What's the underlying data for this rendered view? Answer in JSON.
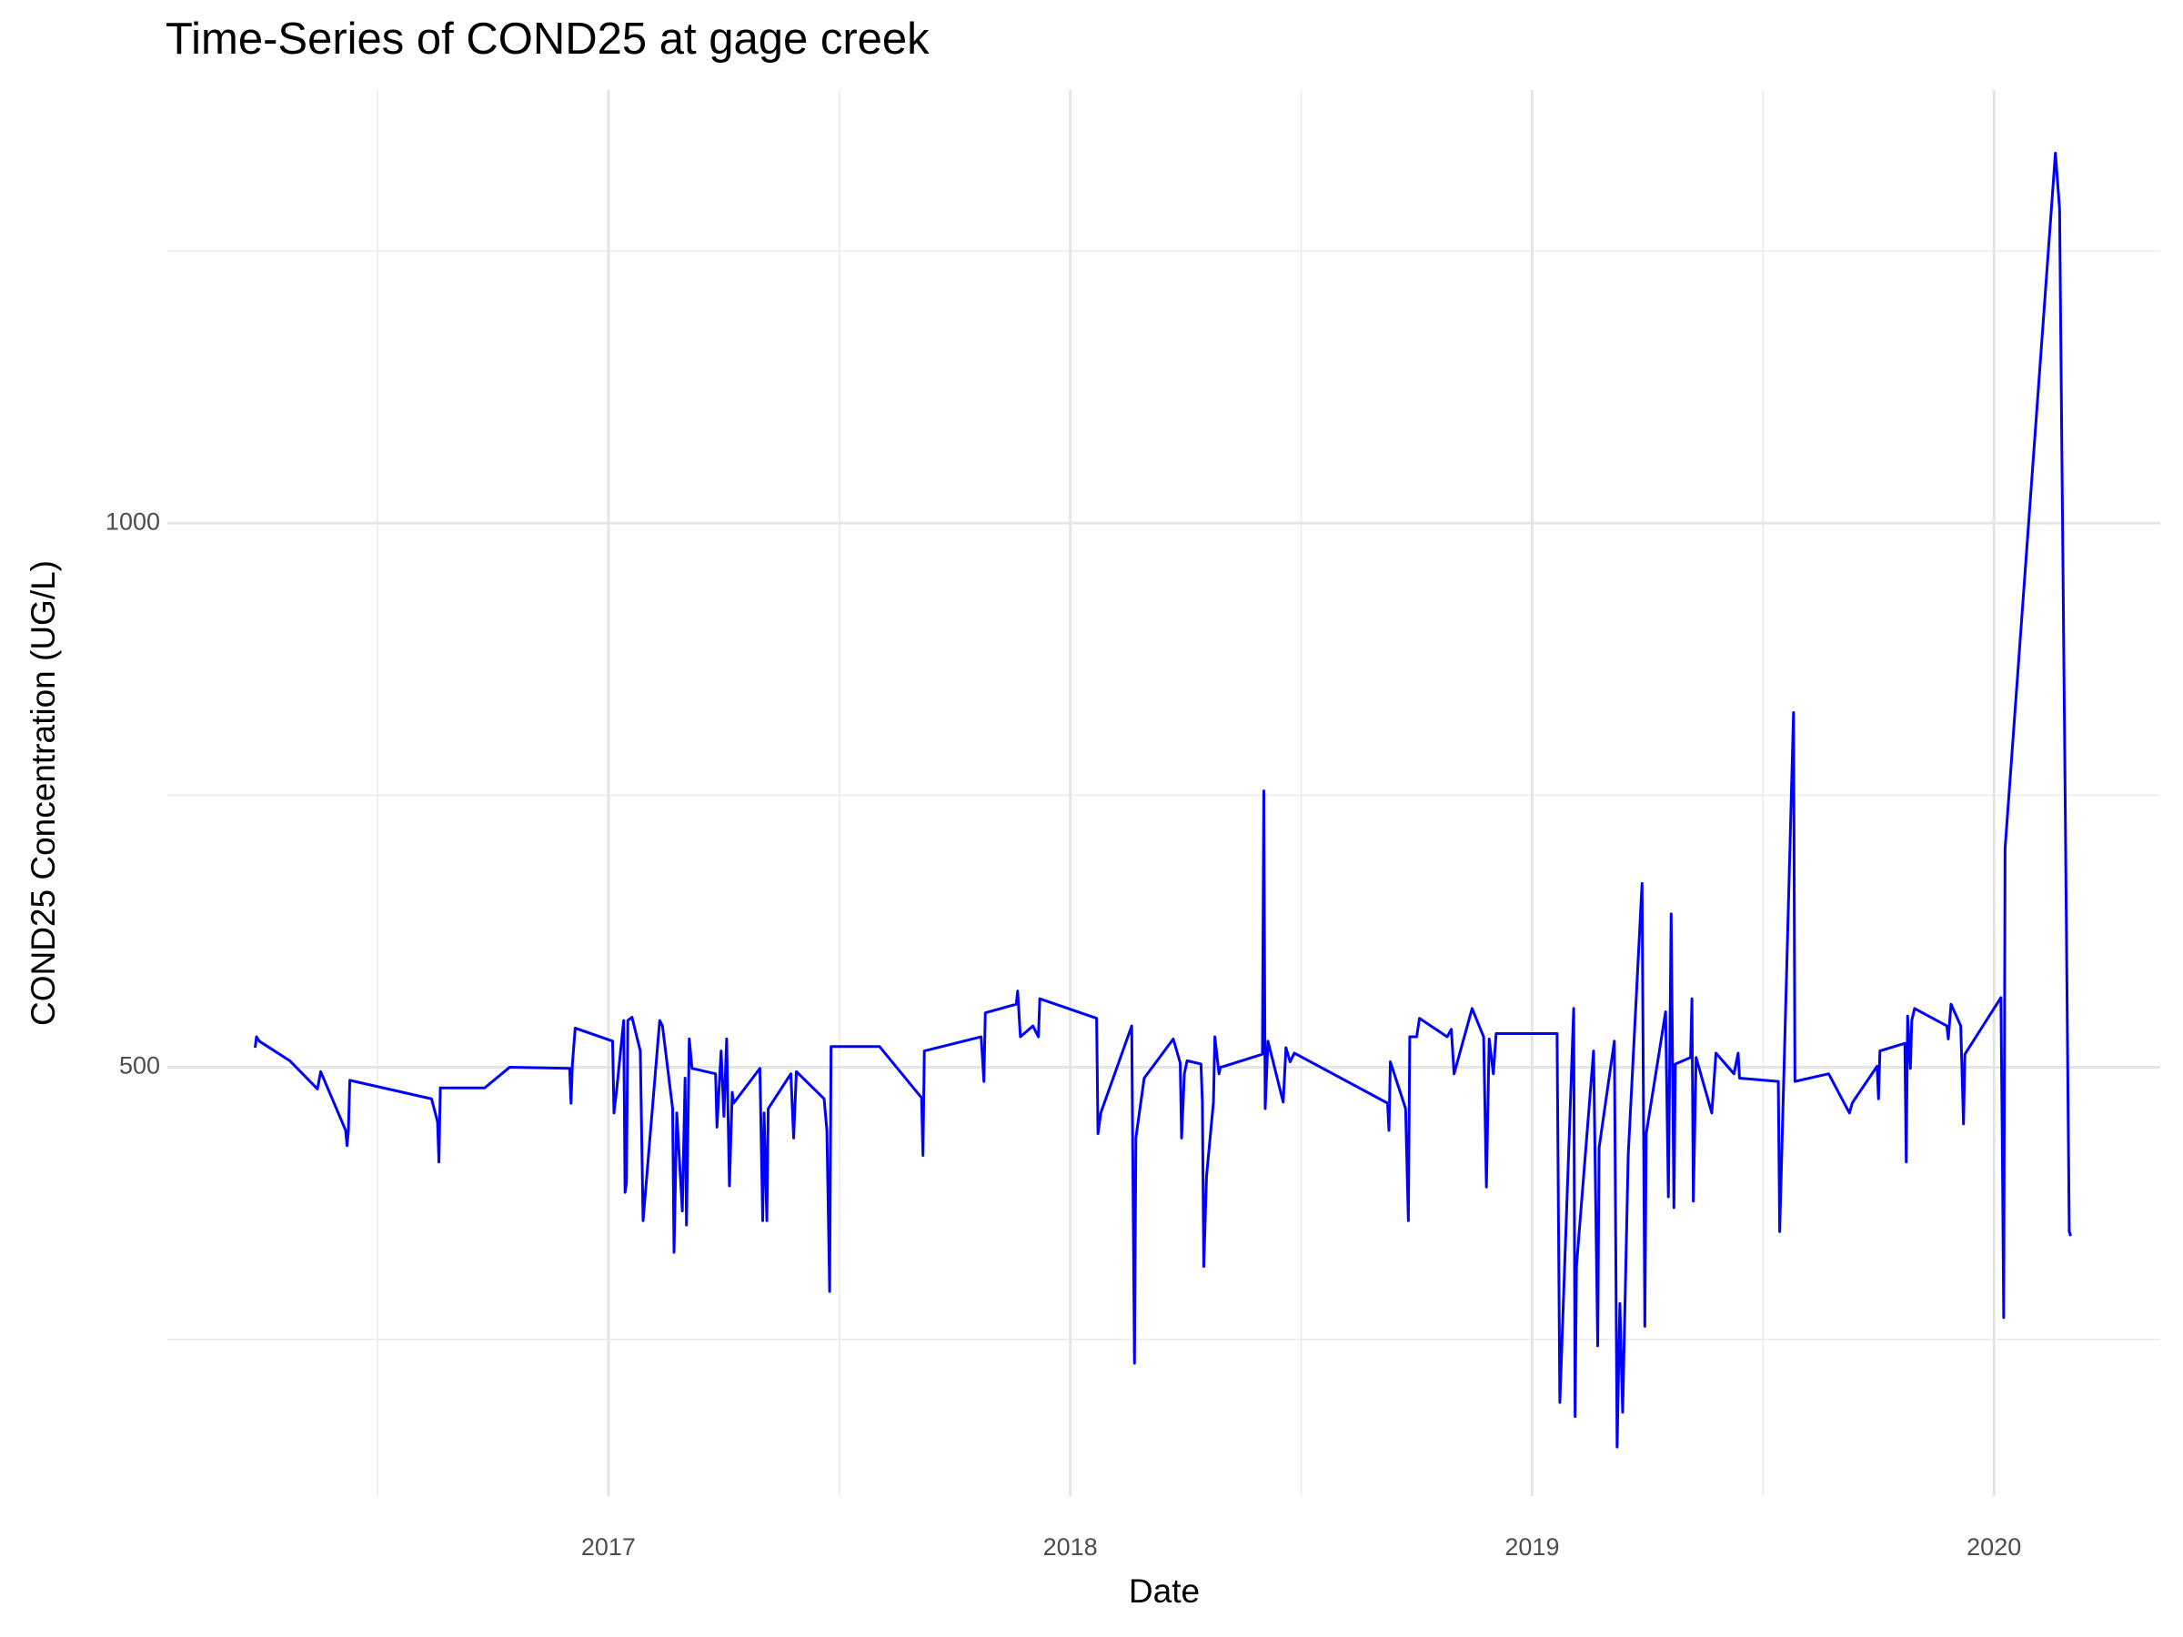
{
  "chart_data": {
    "type": "line",
    "title": "Time-Series of COND25 at gage creek",
    "x_label": "Date",
    "y_label": "COND25 Concentration (UG/L)",
    "color": "#0000ff",
    "grid": true,
    "xlim": [
      2016.045,
      2020.36
    ],
    "xticks": [
      2017,
      2018,
      2019,
      2020
    ],
    "xminor_ticks": [
      2016.5,
      2017.5,
      2018.5,
      2019.5
    ],
    "ylim": [
      106,
      1398
    ],
    "yticks": [
      500,
      1000
    ],
    "yminor_ticks": [
      250,
      750,
      1250
    ],
    "x": [
      2016.235,
      2016.238,
      2016.244,
      2016.31,
      2016.37,
      2016.377,
      2016.431,
      2016.434,
      2016.437,
      2016.44,
      2016.617,
      2016.63,
      2016.633,
      2016.636,
      2016.732,
      2016.786,
      2016.916,
      2016.919,
      2016.922,
      2016.928,
      2017.009,
      2017.012,
      2017.018,
      2017.033,
      2017.036,
      2017.039,
      2017.042,
      2017.051,
      2017.069,
      2017.075,
      2017.111,
      2017.117,
      2017.139,
      2017.142,
      2017.148,
      2017.16,
      2017.166,
      2017.169,
      2017.175,
      2017.181,
      2017.232,
      2017.235,
      2017.244,
      2017.25,
      2017.256,
      2017.262,
      2017.268,
      2017.271,
      2017.328,
      2017.334,
      2017.337,
      2017.343,
      2017.346,
      2017.395,
      2017.401,
      2017.407,
      2017.467,
      2017.473,
      2017.479,
      2017.482,
      2017.587,
      2017.678,
      2017.681,
      2017.684,
      2017.807,
      2017.813,
      2017.816,
      2017.883,
      2017.886,
      2017.892,
      2017.919,
      2017.931,
      2017.934,
      2018.057,
      2018.06,
      2018.066,
      2018.133,
      2018.139,
      2018.142,
      2018.16,
      2018.223,
      2018.238,
      2018.241,
      2018.247,
      2018.253,
      2018.283,
      2018.286,
      2018.289,
      2018.295,
      2018.31,
      2018.313,
      2018.322,
      2018.325,
      2018.334,
      2018.416,
      2018.419,
      2018.422,
      2018.428,
      2018.461,
      2018.467,
      2018.476,
      2018.485,
      2018.687,
      2018.69,
      2018.693,
      2018.726,
      2018.732,
      2018.735,
      2018.75,
      2018.756,
      2018.816,
      2018.825,
      2018.831,
      2018.87,
      2018.895,
      2018.901,
      2018.907,
      2018.916,
      2018.922,
      2019.054,
      2019.06,
      2019.09,
      2019.093,
      2019.096,
      2019.133,
      2019.142,
      2019.145,
      2019.178,
      2019.184,
      2019.19,
      2019.196,
      2019.208,
      2019.238,
      2019.244,
      2019.247,
      2019.289,
      2019.295,
      2019.301,
      2019.307,
      2019.31,
      2019.343,
      2019.346,
      2019.349,
      2019.355,
      2019.389,
      2019.398,
      2019.437,
      2019.446,
      2019.449,
      2019.533,
      2019.536,
      2019.566,
      2019.569,
      2019.642,
      2019.687,
      2019.693,
      2019.699,
      2019.747,
      2019.75,
      2019.753,
      2019.807,
      2019.81,
      2019.813,
      2019.819,
      2019.822,
      2019.828,
      2019.898,
      2019.901,
      2019.907,
      2019.928,
      2019.934,
      2019.937,
      2020.015,
      2020.018,
      2020.021,
      2020.024,
      2020.133,
      2020.142,
      2020.163,
      2020.166
    ],
    "values": [
      518,
      528,
      524,
      506,
      480,
      496,
      442,
      428,
      442,
      488,
      471,
      450,
      413,
      481,
      481,
      500,
      499,
      467,
      503,
      536,
      524,
      458,
      480,
      543,
      385,
      394,
      543,
      546,
      515,
      359,
      543,
      538,
      462,
      330,
      458,
      368,
      490,
      355,
      526,
      499,
      494,
      445,
      515,
      455,
      526,
      391,
      477,
      467,
      499,
      359,
      458,
      359,
      462,
      494,
      435,
      496,
      471,
      442,
      294,
      519,
      519,
      472,
      419,
      515,
      528,
      487,
      550,
      558,
      570,
      528,
      538,
      528,
      563,
      545,
      439,
      458,
      538,
      228,
      435,
      490,
      526,
      504,
      435,
      494,
      506,
      503,
      468,
      317,
      400,
      468,
      528,
      494,
      500,
      501,
      512,
      754,
      462,
      524,
      468,
      518,
      505,
      513,
      467,
      442,
      505,
      462,
      359,
      528,
      528,
      545,
      528,
      535,
      494,
      554,
      528,
      390,
      526,
      494,
      531,
      531,
      192,
      554,
      179,
      317,
      515,
      244,
      426,
      524,
      151,
      283,
      183,
      419,
      669,
      262,
      439,
      551,
      381,
      641,
      371,
      503,
      509,
      563,
      377,
      509,
      458,
      513,
      494,
      513,
      490,
      487,
      349,
      826,
      487,
      494,
      458,
      467,
      471,
      501,
      471,
      515,
      522,
      413,
      547,
      499,
      543,
      554,
      538,
      526,
      558,
      538,
      448,
      512,
      564,
      432,
      270,
      701,
      1340,
      1289,
      349,
      345
    ]
  }
}
